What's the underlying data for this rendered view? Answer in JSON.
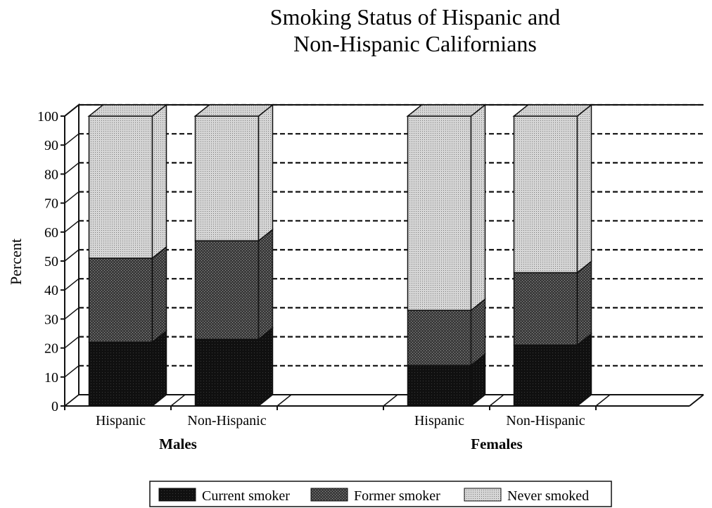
{
  "chart_data": {
    "type": "bar",
    "stacked": true,
    "three_d": true,
    "title": "Smoking Status of Hispanic and Non-Hispanic Californians",
    "title_lines": [
      "Smoking Status of Hispanic and",
      "Non-Hispanic Californians"
    ],
    "ylabel": "Percent",
    "xlabel": "",
    "ylim": [
      0,
      100
    ],
    "yticks": [
      0,
      10,
      20,
      30,
      40,
      50,
      60,
      70,
      80,
      90,
      100
    ],
    "grid": true,
    "legend_position": "bottom",
    "groups": [
      "Males",
      "Females"
    ],
    "categories": [
      "Hispanic",
      "Non-Hispanic",
      "Hispanic",
      "Non-Hispanic"
    ],
    "category_group": [
      "Males",
      "Males",
      "Females",
      "Females"
    ],
    "series": [
      {
        "name": "Current smoker",
        "values": [
          22,
          23,
          14,
          21
        ],
        "color": "#151515"
      },
      {
        "name": "Former smoker",
        "values": [
          29,
          34,
          19,
          25
        ],
        "color": "#4d4d4d"
      },
      {
        "name": "Never smoked",
        "values": [
          49,
          43,
          67,
          54
        ],
        "color": "#c9c9c9"
      }
    ]
  }
}
